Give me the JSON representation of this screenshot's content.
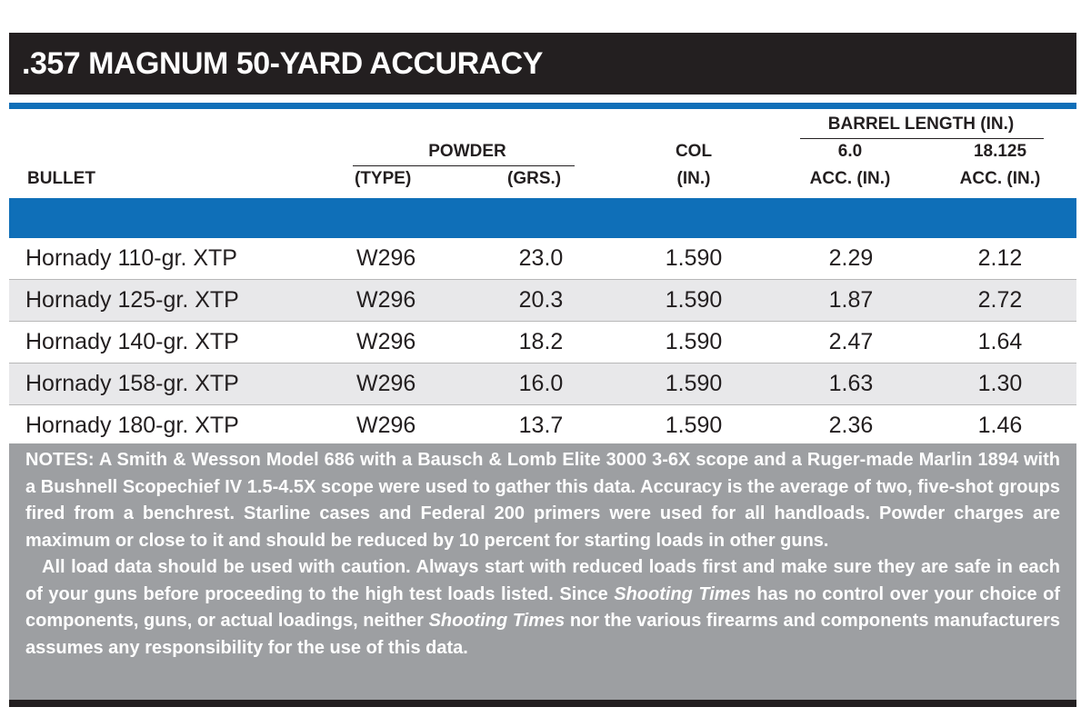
{
  "title": ".357 MAGNUM 50-YARD ACCURACY",
  "headers": {
    "bullet": "BULLET",
    "powder": "POWDER",
    "powder_type": "(TYPE)",
    "powder_grs": "(GRS.)",
    "col": "COL",
    "col_unit": "(IN.)",
    "barrel_length": "BARREL LENGTH (IN.)",
    "barrel_a": "6.0",
    "barrel_b": "18.125",
    "acc_a": "ACC. (IN.)",
    "acc_b": "ACC. (IN.)"
  },
  "rows": [
    {
      "bullet": "Hornady 110-gr. XTP",
      "powder": "W296",
      "grs": "23.0",
      "col": "1.590",
      "acc6": "2.29",
      "acc18": "2.12"
    },
    {
      "bullet": "Hornady 125-gr. XTP",
      "powder": "W296",
      "grs": "20.3",
      "col": "1.590",
      "acc6": "1.87",
      "acc18": "2.72"
    },
    {
      "bullet": "Hornady 140-gr. XTP",
      "powder": "W296",
      "grs": "18.2",
      "col": "1.590",
      "acc6": "2.47",
      "acc18": "1.64"
    },
    {
      "bullet": "Hornady 158-gr. XTP",
      "powder": "W296",
      "grs": "16.0",
      "col": "1.590",
      "acc6": "1.63",
      "acc18": "1.30"
    },
    {
      "bullet": "Hornady 180-gr. XTP",
      "powder": "W296",
      "grs": "13.7",
      "col": "1.590",
      "acc6": "2.36",
      "acc18": "1.46"
    }
  ],
  "notes": {
    "p1": "NOTES: A Smith & Wesson Model 686 with a Bausch & Lomb Elite 3000 3-6X scope and a Ruger-made Marlin 1894 with a Bushnell Scopechief IV 1.5-4.5X scope were used to gather this data. Accuracy is the average of two, five-shot groups fired from a benchrest. Starline cases and Federal 200 primers were used for all handloads. Powder charges are maximum or close to it and should be reduced by 10 percent for starting loads in other guns.",
    "p2_a": "All load data should be used with caution. Always start with reduced loads first and make sure they are safe in each of your guns before proceeding to the high test loads listed. Since ",
    "p2_italic1": "Shooting Times",
    "p2_b": " has no control over your choice of components, guns, or actual loadings, neither ",
    "p2_italic2": "Shooting Times",
    "p2_c": " nor the various firearms and components manufacturers assumes any responsibility for the use of this data."
  },
  "colors": {
    "title_bg": "#231f20",
    "accent_blue": "#0f6fb8",
    "row_alt": "#e8e8ea",
    "notes_bg": "#9d9fa2"
  }
}
